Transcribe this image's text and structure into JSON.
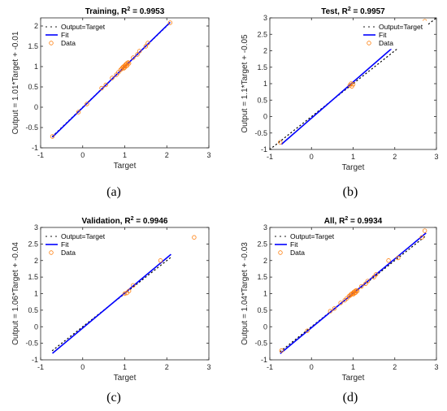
{
  "chart_data": [
    {
      "type": "scatter",
      "panel_label": "(a)",
      "title": "Training, R",
      "title_sup": "2",
      "title_tail": " = 0.9953",
      "xlabel": "Target",
      "ylabel": "Output = 1.01*Target + -0.01",
      "xlim": [
        -1,
        3
      ],
      "ylim": [
        -1,
        2.2
      ],
      "xticks": [
        "-1",
        "0",
        "1",
        "2",
        "3"
      ],
      "yticks": [
        "-1",
        "-0.5",
        "0",
        "0.5",
        "1",
        "1.5",
        "2"
      ],
      "xtick_values": [
        -1,
        0,
        1,
        2,
        3
      ],
      "ytick_values": [
        -1,
        -0.5,
        0,
        0.5,
        1,
        1.5,
        2
      ],
      "fit": {
        "slope": 1.01,
        "intercept": -0.01,
        "x_range": [
          -0.72,
          2.08
        ]
      },
      "identity_range": [
        -0.72,
        2.08
      ],
      "legend": [
        "Output=Target",
        "Fit",
        "Data"
      ],
      "legend_position": "top-left",
      "points": [
        [
          -0.72,
          -0.72
        ],
        [
          -0.1,
          -0.12
        ],
        [
          0.1,
          0.08
        ],
        [
          0.45,
          0.47
        ],
        [
          0.55,
          0.55
        ],
        [
          0.7,
          0.72
        ],
        [
          0.8,
          0.8
        ],
        [
          0.85,
          0.86
        ],
        [
          0.9,
          0.92
        ],
        [
          0.93,
          0.95
        ],
        [
          0.95,
          0.98
        ],
        [
          0.97,
          1.0
        ],
        [
          0.98,
          0.96
        ],
        [
          1.0,
          1.02
        ],
        [
          1.0,
          0.98
        ],
        [
          1.02,
          1.05
        ],
        [
          1.03,
          1.01
        ],
        [
          1.05,
          1.08
        ],
        [
          1.06,
          1.03
        ],
        [
          1.08,
          1.1
        ],
        [
          1.1,
          1.08
        ],
        [
          1.2,
          1.22
        ],
        [
          1.3,
          1.3
        ],
        [
          1.35,
          1.38
        ],
        [
          1.5,
          1.5
        ],
        [
          1.55,
          1.58
        ],
        [
          2.08,
          2.08
        ]
      ]
    },
    {
      "type": "scatter",
      "panel_label": "(b)",
      "title": "Test, R",
      "title_sup": "2",
      "title_tail": " = 0.9957",
      "xlabel": "Target",
      "ylabel": "Output = 1.1*Target + -0.05",
      "xlim": [
        -1,
        3
      ],
      "ylim": [
        -1,
        3
      ],
      "xticks": [
        "-1",
        "0",
        "1",
        "2",
        "3"
      ],
      "yticks": [
        "-1",
        "-0.5",
        "0",
        "0.5",
        "1",
        "1.5",
        "2",
        "2.5",
        "3"
      ],
      "xtick_values": [
        -1,
        0,
        1,
        2,
        3
      ],
      "ytick_values": [
        -1,
        -0.5,
        0,
        0.5,
        1,
        1.5,
        2,
        2.5,
        3
      ],
      "fit": {
        "slope": 1.1,
        "intercept": -0.05,
        "x_range": [
          -0.72,
          2.08
        ]
      },
      "identity_range": [
        -1,
        3
      ],
      "legend": [
        "Output=Target",
        "Fit",
        "Data"
      ],
      "legend_position": "top-right",
      "points": [
        [
          -0.75,
          -0.78
        ],
        [
          0.92,
          0.95
        ],
        [
          0.95,
          1.0
        ],
        [
          0.97,
          0.92
        ],
        [
          1.0,
          0.98
        ],
        [
          2.72,
          2.9
        ]
      ]
    },
    {
      "type": "scatter",
      "panel_label": "(c)",
      "title": "Validation, R",
      "title_sup": "2",
      "title_tail": " = 0.9946",
      "xlabel": "Target",
      "ylabel": "Output = 1.06*Target + -0.04",
      "xlim": [
        -1,
        3
      ],
      "ylim": [
        -1,
        3
      ],
      "xticks": [
        "-1",
        "0",
        "1",
        "2",
        "3"
      ],
      "yticks": [
        "-1",
        "-0.5",
        "0",
        "0.5",
        "1",
        "1.5",
        "2",
        "2.5",
        "3"
      ],
      "xtick_values": [
        -1,
        0,
        1,
        2,
        3
      ],
      "ytick_values": [
        -1,
        -0.5,
        0,
        0.5,
        1,
        1.5,
        2,
        2.5,
        3
      ],
      "fit": {
        "slope": 1.06,
        "intercept": -0.04,
        "x_range": [
          -0.72,
          2.1
        ]
      },
      "identity_range": [
        -0.72,
        2.1
      ],
      "legend": [
        "Output=Target",
        "Fit",
        "Data"
      ],
      "legend_position": "top-left",
      "points": [
        [
          1.0,
          1.0
        ],
        [
          1.05,
          1.02
        ],
        [
          1.1,
          1.08
        ],
        [
          1.2,
          1.25
        ],
        [
          1.85,
          2.0
        ],
        [
          2.65,
          2.7
        ]
      ]
    },
    {
      "type": "scatter",
      "panel_label": "(d)",
      "title": "All, R",
      "title_sup": "2",
      "title_tail": " = 0.9934",
      "xlabel": "Target",
      "ylabel": "Output = 1.04*Target + -0.03",
      "xlim": [
        -1,
        3
      ],
      "ylim": [
        -1,
        3
      ],
      "xticks": [
        "-1",
        "0",
        "1",
        "2",
        "3"
      ],
      "yticks": [
        "-1",
        "-0.5",
        "0",
        "0.5",
        "1",
        "1.5",
        "2",
        "2.5",
        "3"
      ],
      "xtick_values": [
        -1,
        0,
        1,
        2,
        3
      ],
      "ytick_values": [
        -1,
        -0.5,
        0,
        0.5,
        1,
        1.5,
        2,
        2.5,
        3
      ],
      "fit": {
        "slope": 1.04,
        "intercept": -0.03,
        "x_range": [
          -0.75,
          2.75
        ]
      },
      "identity_range": [
        -0.75,
        2.75
      ],
      "legend": [
        "Output=Target",
        "Fit",
        "Data"
      ],
      "legend_position": "top-left",
      "points": [
        [
          -0.72,
          -0.72
        ],
        [
          -0.1,
          -0.12
        ],
        [
          0.45,
          0.47
        ],
        [
          0.55,
          0.55
        ],
        [
          0.7,
          0.72
        ],
        [
          0.8,
          0.8
        ],
        [
          0.85,
          0.86
        ],
        [
          0.9,
          0.92
        ],
        [
          0.93,
          0.95
        ],
        [
          0.95,
          0.98
        ],
        [
          0.97,
          1.0
        ],
        [
          1.0,
          1.02
        ],
        [
          1.0,
          0.98
        ],
        [
          1.02,
          1.05
        ],
        [
          1.03,
          1.01
        ],
        [
          1.05,
          1.08
        ],
        [
          1.06,
          1.03
        ],
        [
          1.08,
          1.1
        ],
        [
          1.1,
          1.08
        ],
        [
          1.2,
          1.22
        ],
        [
          1.3,
          1.3
        ],
        [
          1.35,
          1.38
        ],
        [
          1.5,
          1.5
        ],
        [
          1.55,
          1.58
        ],
        [
          1.85,
          2.0
        ],
        [
          2.08,
          2.08
        ],
        [
          2.65,
          2.7
        ],
        [
          2.72,
          2.9
        ]
      ]
    }
  ],
  "colors": {
    "fit": "#0000ff",
    "data": "#ff7f0e",
    "identity": "#000000",
    "axis": "#262626"
  }
}
